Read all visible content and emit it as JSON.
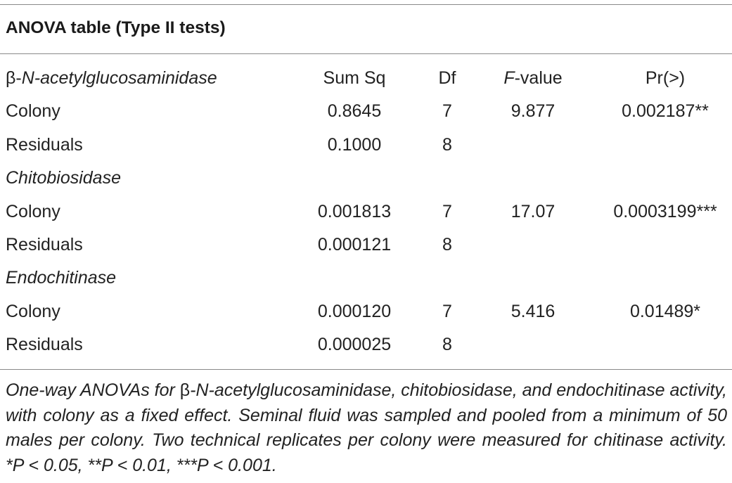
{
  "title": "ANOVA table (Type II tests)",
  "header": {
    "enzyme_prefix": "β-",
    "enzyme_italic": "N-acetylglucosaminidase",
    "sum_sq": "Sum Sq",
    "df": "Df",
    "f_italic": "F",
    "f_rest": "-value",
    "p": "Pr(>)"
  },
  "sections": [
    {
      "rows": [
        {
          "label": "Colony",
          "sum_sq": "0.8645",
          "df": "7",
          "f_value": "9.877",
          "p_value": "0.002187**"
        },
        {
          "label": "Residuals",
          "sum_sq": "0.1000",
          "df": "8",
          "f_value": "",
          "p_value": ""
        }
      ]
    },
    {
      "heading": "Chitobiosidase",
      "rows": [
        {
          "label": "Colony",
          "sum_sq": "0.001813",
          "df": "7",
          "f_value": "17.07",
          "p_value": "0.0003199***"
        },
        {
          "label": "Residuals",
          "sum_sq": "0.000121",
          "df": "8",
          "f_value": "",
          "p_value": ""
        }
      ]
    },
    {
      "heading": "Endochitinase",
      "rows": [
        {
          "label": "Colony",
          "sum_sq": "0.000120",
          "df": "7",
          "f_value": "5.416",
          "p_value": "0.01489*"
        },
        {
          "label": "Residuals",
          "sum_sq": "0.000025",
          "df": "8",
          "f_value": "",
          "p_value": ""
        }
      ]
    }
  ],
  "caption": {
    "part1": "One-way ANOVAs for ",
    "beta": "β",
    "part2": "-N-acetylglucosaminidase, chitobiosidase, and endochiti­nase activity, with colony as a fixed effect. Seminal fluid was sampled and pooled from a minimum of 50 males per colony. Two technical replicates per colony were measured for chitinase activity. *P < 0.05, **P < 0.01, ***P < 0.001."
  }
}
